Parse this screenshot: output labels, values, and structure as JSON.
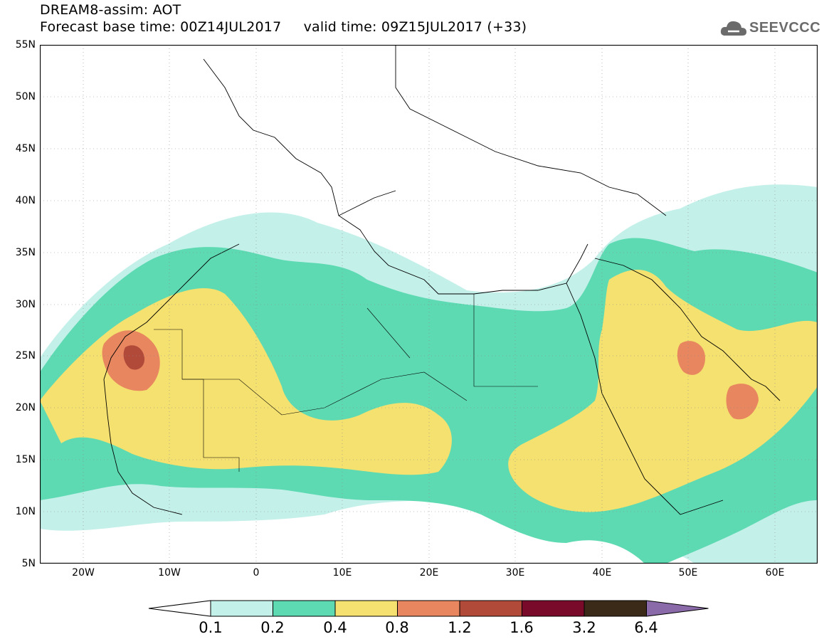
{
  "header": {
    "line1": "DREAM8-assim: AOT",
    "line2_base": "Forecast base time: 00Z14JUL2017",
    "line2_valid": "valid time: 09Z15JUL2017 (+33)"
  },
  "logo": {
    "text": "SEEVCCC",
    "icon": "cloud-icon"
  },
  "map": {
    "lon_range": [
      -25,
      65
    ],
    "lat_range": [
      5,
      55
    ],
    "lat_labels": [
      "55N",
      "50N",
      "45N",
      "40N",
      "35N",
      "30N",
      "25N",
      "20N",
      "15N",
      "10N",
      "5N"
    ],
    "lon_labels": [
      "20W",
      "10W",
      "0",
      "10E",
      "20E",
      "30E",
      "40E",
      "50E",
      "60E"
    ]
  },
  "colorbar": {
    "labels": [
      "0.1",
      "0.2",
      "0.4",
      "0.8",
      "1.2",
      "1.6",
      "3.2",
      "6.4"
    ],
    "colors": [
      "#c4f0ea",
      "#5ddab2",
      "#f5e16f",
      "#e8875f",
      "#b24a3a",
      "#7a0a2a",
      "#3b2a17",
      "#8a6aa8"
    ]
  }
}
